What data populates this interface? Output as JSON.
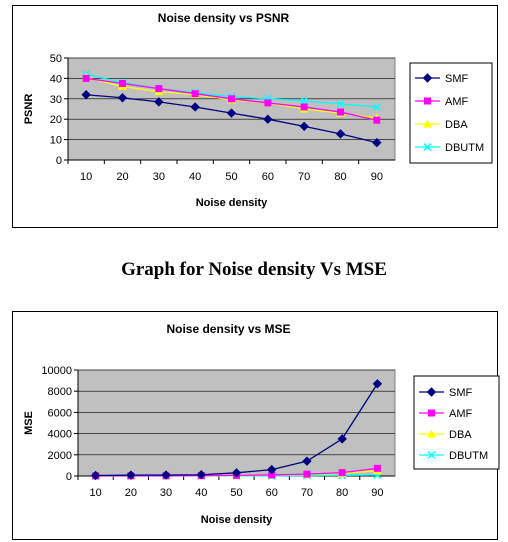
{
  "caption": "Graph for Noise density Vs MSE",
  "colors": {
    "plot_bg": "#c0c0c0",
    "SMF": "#000080",
    "AMF": "#ff00ff",
    "DBA": "#ffff00",
    "DBUTM": "#00ffff"
  },
  "chart_data": [
    {
      "type": "line",
      "title": "Noise density vs PSNR",
      "xlabel": "Noise density",
      "ylabel": "PSNR",
      "x": [
        10,
        20,
        30,
        40,
        50,
        60,
        70,
        80,
        90
      ],
      "ylim": [
        0,
        50
      ],
      "yticks": [
        0,
        10,
        20,
        30,
        40,
        50
      ],
      "grid": true,
      "legend": "right",
      "series": [
        {
          "name": "SMF",
          "marker": "diamond",
          "values": [
            32,
            30.5,
            28.5,
            26,
            23,
            20,
            16.5,
            12.8,
            8.5
          ]
        },
        {
          "name": "AMF",
          "marker": "square",
          "values": [
            40,
            37.5,
            35,
            32.5,
            30,
            28,
            26,
            23.5,
            19.5
          ]
        },
        {
          "name": "DBA",
          "marker": "triangle",
          "values": [
            40.5,
            36,
            33.5,
            32,
            29.5,
            28,
            25,
            23,
            20.5
          ]
        },
        {
          "name": "DBUTM",
          "marker": "x",
          "values": [
            42,
            38,
            35,
            33,
            31,
            30,
            29,
            27.5,
            26
          ]
        }
      ]
    },
    {
      "type": "line",
      "title": "Noise density vs MSE",
      "xlabel": "Noise density",
      "ylabel": "MSE",
      "x": [
        10,
        20,
        30,
        40,
        50,
        60,
        70,
        80,
        90
      ],
      "ylim": [
        0,
        10000
      ],
      "yticks": [
        0,
        2000,
        4000,
        6000,
        8000,
        10000
      ],
      "grid": true,
      "legend": "right",
      "series": [
        {
          "name": "SMF",
          "marker": "diamond",
          "values": [
            50,
            80,
            90,
            120,
            300,
            600,
            1400,
            3500,
            8700
          ]
        },
        {
          "name": "AMF",
          "marker": "square",
          "values": [
            10,
            15,
            20,
            30,
            60,
            100,
            180,
            320,
            720
          ]
        },
        {
          "name": "DBA",
          "marker": "triangle",
          "values": [
            5,
            10,
            15,
            25,
            50,
            80,
            130,
            250,
            500
          ]
        },
        {
          "name": "DBUTM",
          "marker": "x",
          "values": [
            3,
            5,
            8,
            10,
            15,
            20,
            35,
            60,
            100
          ]
        }
      ]
    }
  ]
}
